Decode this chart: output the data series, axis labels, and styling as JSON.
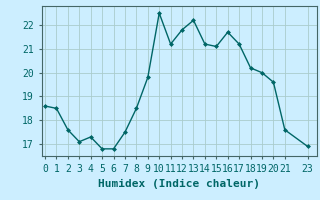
{
  "x": [
    0,
    1,
    2,
    3,
    4,
    5,
    6,
    7,
    8,
    9,
    10,
    11,
    12,
    13,
    14,
    15,
    16,
    17,
    18,
    19,
    20,
    21,
    23
  ],
  "y": [
    18.6,
    18.5,
    17.6,
    17.1,
    17.3,
    16.8,
    16.8,
    17.5,
    18.5,
    19.8,
    22.5,
    21.2,
    21.8,
    22.2,
    21.2,
    21.1,
    21.7,
    21.2,
    20.2,
    20.0,
    19.6,
    17.6,
    16.9
  ],
  "line_color": "#006666",
  "marker": "D",
  "marker_size": 2.0,
  "bg_color": "#cceeff",
  "grid_color": "#aacccc",
  "xlabel": "Humidex (Indice chaleur)",
  "xlabel_fontsize": 8,
  "ylim": [
    16.5,
    22.8
  ],
  "yticks": [
    17,
    18,
    19,
    20,
    21,
    22
  ],
  "xticks": [
    0,
    1,
    2,
    3,
    4,
    5,
    6,
    7,
    8,
    9,
    10,
    11,
    12,
    13,
    14,
    15,
    16,
    17,
    18,
    19,
    20,
    21,
    23
  ],
  "xtick_labels": [
    "0",
    "1",
    "2",
    "3",
    "4",
    "5",
    "6",
    "7",
    "8",
    "9",
    "10",
    "11",
    "12",
    "13",
    "14",
    "15",
    "16",
    "17",
    "18",
    "19",
    "20",
    "21",
    "23"
  ],
  "tick_fontsize": 7,
  "line_width": 1.0,
  "xlim": [
    -0.3,
    23.8
  ]
}
